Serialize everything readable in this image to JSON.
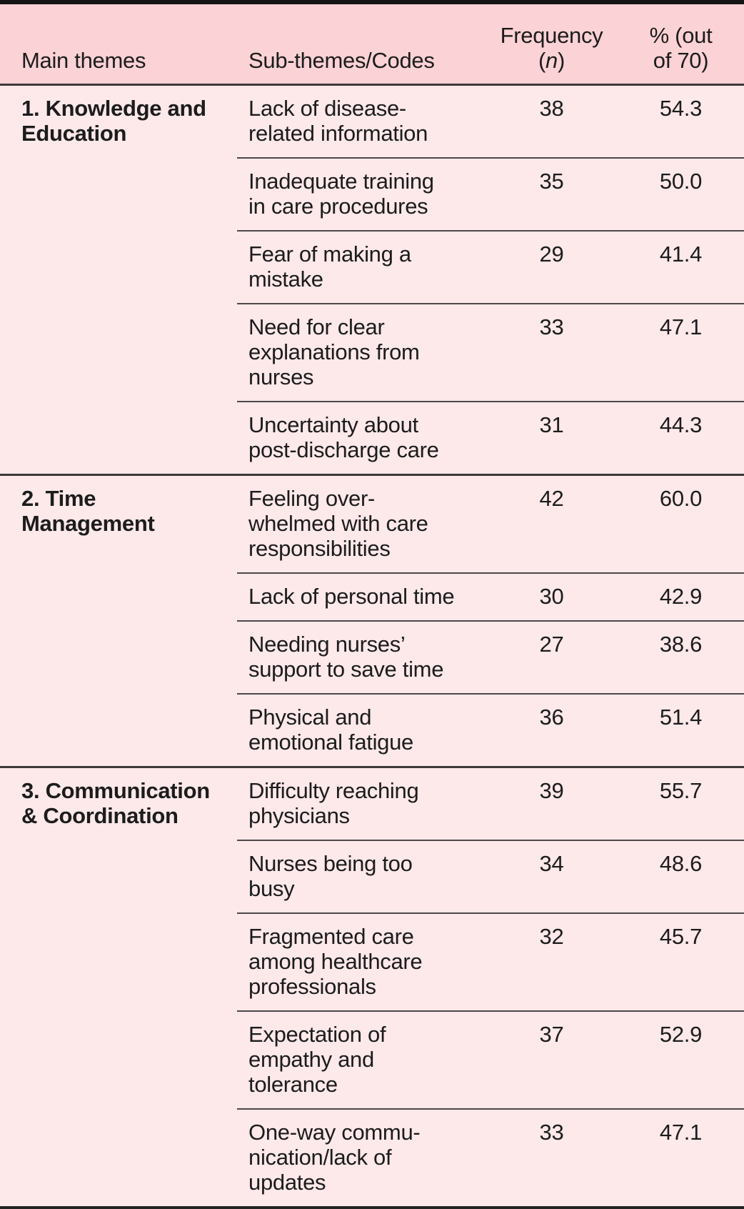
{
  "table": {
    "columns": {
      "main_themes": "Main themes",
      "sub_themes": "Sub-themes/Codes",
      "frequency_line1": "Frequency",
      "frequency_paren_open": "(",
      "frequency_n": "n",
      "frequency_paren_close": ")",
      "percent_lines": [
        "% (out",
        "of 70)"
      ]
    },
    "sections": [
      {
        "theme_lines": [
          "1. Knowledge and",
          "Education"
        ],
        "rows": [
          {
            "sub_theme_lines": [
              "Lack of disease-",
              "related information"
            ],
            "frequency": "38",
            "percent": "54.3"
          },
          {
            "sub_theme_lines": [
              "Inadequate training",
              "in care procedures"
            ],
            "frequency": "35",
            "percent": "50.0"
          },
          {
            "sub_theme_lines": [
              "Fear of making a",
              "mistake"
            ],
            "frequency": "29",
            "percent": "41.4"
          },
          {
            "sub_theme_lines": [
              "Need for clear",
              "explanations from",
              "nurses"
            ],
            "frequency": "33",
            "percent": "47.1"
          },
          {
            "sub_theme_lines": [
              "Uncertainty about",
              "post-discharge care"
            ],
            "frequency": "31",
            "percent": "44.3"
          }
        ]
      },
      {
        "theme_lines": [
          "2. Time",
          "Management"
        ],
        "rows": [
          {
            "sub_theme_lines": [
              "Feeling over-",
              "whelmed with care",
              "responsibilities"
            ],
            "frequency": "42",
            "percent": "60.0"
          },
          {
            "sub_theme_lines": [
              "Lack of personal time"
            ],
            "frequency": "30",
            "percent": "42.9"
          },
          {
            "sub_theme_lines": [
              "Needing nurses’",
              "support to save time"
            ],
            "frequency": "27",
            "percent": "38.6"
          },
          {
            "sub_theme_lines": [
              "Physical and",
              "emotional fatigue"
            ],
            "frequency": "36",
            "percent": "51.4"
          }
        ]
      },
      {
        "theme_lines": [
          "3. Communication",
          "& Coordination"
        ],
        "rows": [
          {
            "sub_theme_lines": [
              "Difficulty reaching",
              "physicians"
            ],
            "frequency": "39",
            "percent": "55.7"
          },
          {
            "sub_theme_lines": [
              "Nurses being too",
              "busy"
            ],
            "frequency": "34",
            "percent": "48.6"
          },
          {
            "sub_theme_lines": [
              "Fragmented care",
              "among healthcare",
              "professionals"
            ],
            "frequency": "32",
            "percent": "45.7"
          },
          {
            "sub_theme_lines": [
              "Expectation of",
              "empathy and",
              "tolerance"
            ],
            "frequency": "37",
            "percent": "52.9"
          },
          {
            "sub_theme_lines": [
              "One-way commu-",
              "nication/lack of",
              "updates"
            ],
            "frequency": "33",
            "percent": "47.1"
          }
        ]
      }
    ]
  },
  "colors": {
    "header_background": "#fbd2d5",
    "body_background": "#fde8ea",
    "top_rule": "#141414",
    "section_rule": "#3d383a",
    "subrow_rule": "#4d484a",
    "text": "#1c1c1c"
  }
}
